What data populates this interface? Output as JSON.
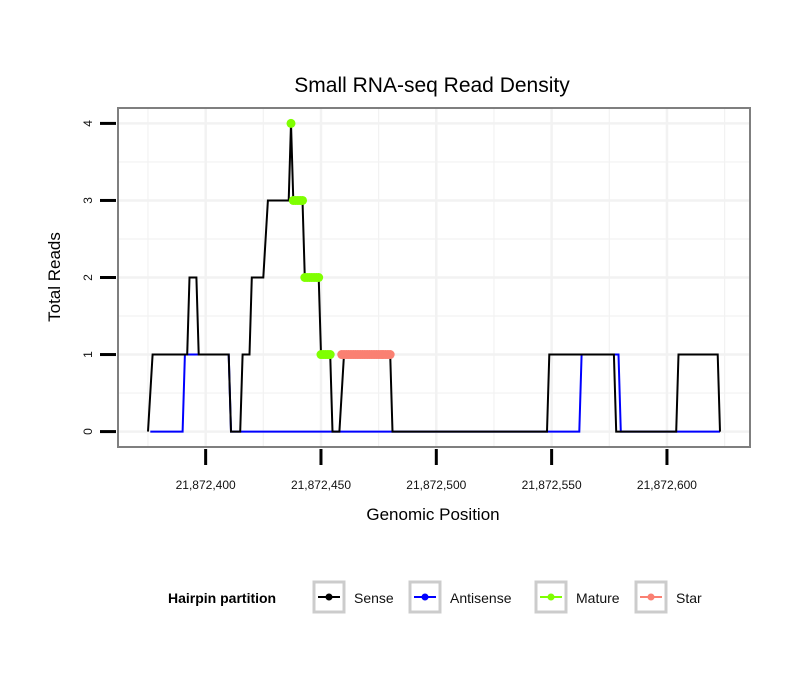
{
  "chart_data": {
    "type": "line",
    "title": "Small RNA-seq Read Density",
    "xlabel": "Genomic Position",
    "ylabel": "Total Reads",
    "xlim": [
      21872362,
      21872636
    ],
    "ylim": [
      -0.2,
      4.2
    ],
    "x_ticks": [
      21872400,
      21872450,
      21872500,
      21872550,
      21872600
    ],
    "x_tick_labels": [
      "21,872,400",
      "21,872,450",
      "21,872,500",
      "21,872,550",
      "21,872,600"
    ],
    "y_ticks": [
      0,
      1,
      2,
      3,
      4
    ],
    "y_tick_labels": [
      "0",
      "1",
      "2",
      "3",
      "4"
    ],
    "grid": true,
    "legend": {
      "title": "Hairpin partition",
      "position": "bottom",
      "entries": [
        "Sense",
        "Antisense",
        "Mature",
        "Star"
      ]
    },
    "series": [
      {
        "name": "Sense",
        "color": "#000000",
        "style": "line",
        "points": [
          [
            21872375,
            0
          ],
          [
            21872377,
            1
          ],
          [
            21872392,
            1
          ],
          [
            21872393,
            2
          ],
          [
            21872396,
            2
          ],
          [
            21872397,
            1
          ],
          [
            21872410,
            1
          ],
          [
            21872411,
            0
          ],
          [
            21872415,
            0
          ],
          [
            21872416,
            1
          ],
          [
            21872419,
            1
          ],
          [
            21872420,
            2
          ],
          [
            21872425,
            2
          ],
          [
            21872427,
            3
          ],
          [
            21872436,
            3
          ],
          [
            21872437,
            4
          ],
          [
            21872438,
            3
          ],
          [
            21872442,
            3
          ],
          [
            21872443,
            2
          ],
          [
            21872449,
            2
          ],
          [
            21872450,
            1
          ],
          [
            21872454,
            1
          ],
          [
            21872455,
            0
          ],
          [
            21872458,
            0
          ],
          [
            21872460,
            1
          ],
          [
            21872480,
            1
          ],
          [
            21872481,
            0
          ],
          [
            21872548,
            0
          ],
          [
            21872549,
            1
          ],
          [
            21872577,
            1
          ],
          [
            21872578,
            0
          ],
          [
            21872604,
            0
          ],
          [
            21872605,
            1
          ],
          [
            21872622,
            1
          ],
          [
            21872623,
            0
          ]
        ]
      },
      {
        "name": "Antisense",
        "color": "#0000ff",
        "style": "line",
        "points": [
          [
            21872376,
            0
          ],
          [
            21872390,
            0
          ],
          [
            21872391,
            1
          ],
          [
            21872410,
            1
          ],
          [
            21872411,
            0
          ],
          [
            21872562,
            0
          ],
          [
            21872563,
            1
          ],
          [
            21872579,
            1
          ],
          [
            21872580,
            0
          ],
          [
            21872623,
            0
          ]
        ]
      },
      {
        "name": "Mature",
        "color": "#7fff00",
        "style": "points",
        "points": [
          [
            21872437,
            4
          ],
          [
            21872438,
            3
          ],
          [
            21872439,
            3
          ],
          [
            21872440,
            3
          ],
          [
            21872441,
            3
          ],
          [
            21872442,
            3
          ],
          [
            21872443,
            2
          ],
          [
            21872444,
            2
          ],
          [
            21872445,
            2
          ],
          [
            21872446,
            2
          ],
          [
            21872447,
            2
          ],
          [
            21872448,
            2
          ],
          [
            21872449,
            2
          ],
          [
            21872450,
            1
          ],
          [
            21872451,
            1
          ],
          [
            21872452,
            1
          ],
          [
            21872453,
            1
          ],
          [
            21872454,
            1
          ]
        ]
      },
      {
        "name": "Star",
        "color": "#fa8072",
        "style": "points",
        "points": [
          [
            21872459,
            1
          ],
          [
            21872460,
            1
          ],
          [
            21872461,
            1
          ],
          [
            21872462,
            1
          ],
          [
            21872463,
            1
          ],
          [
            21872464,
            1
          ],
          [
            21872465,
            1
          ],
          [
            21872466,
            1
          ],
          [
            21872467,
            1
          ],
          [
            21872468,
            1
          ],
          [
            21872469,
            1
          ],
          [
            21872470,
            1
          ],
          [
            21872471,
            1
          ],
          [
            21872472,
            1
          ],
          [
            21872473,
            1
          ],
          [
            21872474,
            1
          ],
          [
            21872475,
            1
          ],
          [
            21872476,
            1
          ],
          [
            21872477,
            1
          ],
          [
            21872478,
            1
          ],
          [
            21872479,
            1
          ],
          [
            21872480,
            1
          ]
        ]
      }
    ]
  }
}
